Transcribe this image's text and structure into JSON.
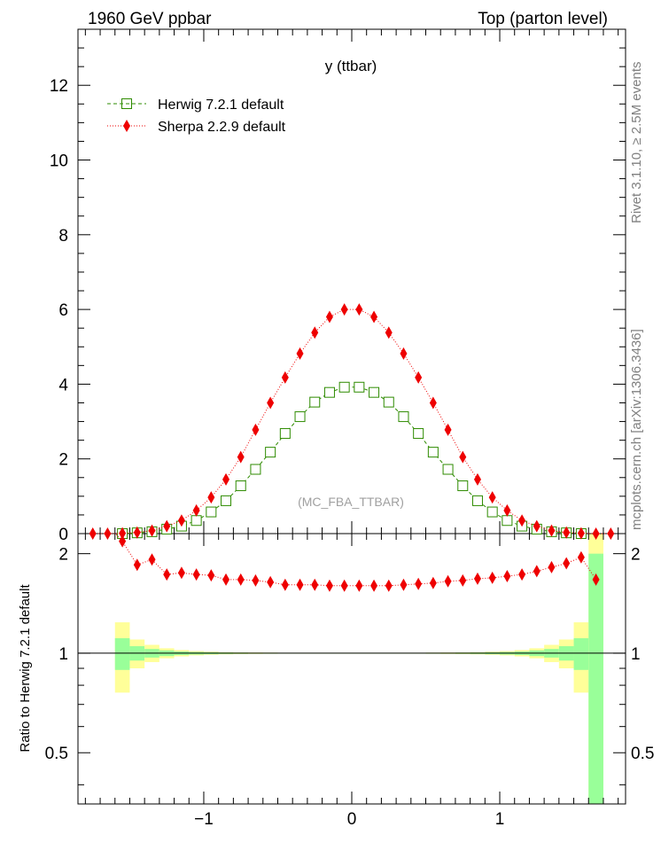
{
  "header": {
    "left": "1960 GeV ppbar",
    "right": "Top (parton level)"
  },
  "side": {
    "rivet": "Rivet 3.1.10, ≥ 2.5M events",
    "mcplots": "mcplots.cern.ch [arXiv:1306.3436]"
  },
  "colors": {
    "herwig": "#2e8b00",
    "sherpa": "#ee0000",
    "band_inner": "#99ff99",
    "band_outer": "#ffff99"
  },
  "chart_data": [
    {
      "type": "line",
      "title": "y (ttbar)",
      "watermark": "(MC_FBA_TTBAR)",
      "xlim": [
        -1.85,
        1.85
      ],
      "ylim": [
        0,
        13.5
      ],
      "yticks": [
        0,
        2,
        4,
        6,
        8,
        10,
        12
      ],
      "legend": "top-left",
      "x": [
        -1.7,
        -1.6,
        -1.5,
        -1.4,
        -1.3,
        -1.2,
        -1.1,
        -1.0,
        -0.9,
        -0.8,
        -0.7,
        -0.6,
        -0.5,
        -0.4,
        -0.3,
        -0.2,
        -0.1,
        0.0,
        0.1,
        0.2,
        0.3,
        0.4,
        0.5,
        0.6,
        0.7,
        0.8,
        0.9,
        1.0,
        1.1,
        1.2,
        1.3,
        1.4,
        1.5,
        1.6,
        1.7
      ],
      "series": [
        {
          "name": "Herwig 7.2.1 default",
          "marker": "open-square",
          "x": [
            -1.55,
            -1.45,
            -1.35,
            -1.25,
            -1.15,
            -1.05,
            -0.95,
            -0.85,
            -0.75,
            -0.65,
            -0.55,
            -0.45,
            -0.35,
            -0.25,
            -0.15,
            -0.05,
            0.05,
            0.15,
            0.25,
            0.35,
            0.45,
            0.55,
            0.65,
            0.75,
            0.85,
            0.95,
            1.05,
            1.15,
            1.25,
            1.35,
            1.45,
            1.55
          ],
          "values": [
            0.0,
            0.02,
            0.05,
            0.12,
            0.2,
            0.35,
            0.58,
            0.88,
            1.28,
            1.72,
            2.18,
            2.68,
            3.13,
            3.52,
            3.78,
            3.92,
            3.92,
            3.78,
            3.52,
            3.13,
            2.68,
            2.18,
            1.72,
            1.28,
            0.88,
            0.58,
            0.35,
            0.2,
            0.12,
            0.05,
            0.02,
            0.0
          ]
        },
        {
          "name": "Sherpa 2.2.9 default",
          "marker": "filled-diamond",
          "x": [
            -1.75,
            -1.65,
            -1.55,
            -1.45,
            -1.35,
            -1.25,
            -1.15,
            -1.05,
            -0.95,
            -0.85,
            -0.75,
            -0.65,
            -0.55,
            -0.45,
            -0.35,
            -0.25,
            -0.15,
            -0.05,
            0.05,
            0.15,
            0.25,
            0.35,
            0.45,
            0.55,
            0.65,
            0.75,
            0.85,
            0.95,
            1.05,
            1.15,
            1.25,
            1.35,
            1.45,
            1.55,
            1.65,
            1.75
          ],
          "values": [
            0.0,
            0.0,
            0.01,
            0.03,
            0.08,
            0.2,
            0.35,
            0.62,
            0.97,
            1.45,
            2.05,
            2.78,
            3.5,
            4.18,
            4.82,
            5.38,
            5.8,
            6.0,
            6.0,
            5.8,
            5.38,
            4.82,
            4.18,
            3.5,
            2.78,
            2.05,
            1.45,
            0.97,
            0.62,
            0.35,
            0.2,
            0.08,
            0.03,
            0.01,
            0.0,
            0.0
          ]
        }
      ]
    },
    {
      "type": "line",
      "ylabel": "Ratio to Herwig 7.2.1 default",
      "xlim": [
        -1.85,
        1.85
      ],
      "ylim": [
        0.35,
        2.3
      ],
      "yticks": [
        0.5,
        1,
        2
      ],
      "xticks": [
        -1,
        0,
        1
      ],
      "reference": 1,
      "band_x": [
        -1.55,
        -1.45,
        -1.35,
        -1.25,
        -1.15,
        -1.05,
        -0.95,
        -0.85,
        -0.75,
        -0.65,
        -0.55,
        -0.45,
        -0.35,
        -0.25,
        -0.15,
        -0.05,
        0.05,
        0.15,
        0.25,
        0.35,
        0.45,
        0.55,
        0.65,
        0.75,
        0.85,
        0.95,
        1.05,
        1.15,
        1.25,
        1.35,
        1.45,
        1.55,
        1.65
      ],
      "band_inner_half": [
        0.11,
        0.05,
        0.03,
        0.02,
        0.012,
        0.009,
        0.007,
        0.005,
        0.004,
        0.003,
        0.003,
        0.002,
        0.002,
        0.002,
        0.002,
        0.002,
        0.002,
        0.002,
        0.002,
        0.002,
        0.002,
        0.003,
        0.003,
        0.004,
        0.005,
        0.007,
        0.009,
        0.012,
        0.02,
        0.03,
        0.05,
        0.11,
        1.0
      ],
      "band_outer_half": [
        0.24,
        0.1,
        0.06,
        0.035,
        0.022,
        0.015,
        0.011,
        0.008,
        0.006,
        0.005,
        0.004,
        0.003,
        0.003,
        0.003,
        0.003,
        0.003,
        0.003,
        0.003,
        0.003,
        0.003,
        0.003,
        0.004,
        0.005,
        0.006,
        0.008,
        0.011,
        0.015,
        0.022,
        0.035,
        0.06,
        0.1,
        0.24,
        1.3
      ],
      "series": [
        {
          "name": "Sherpa 2.2.9 default",
          "x": [
            -1.65,
            -1.55,
            -1.45,
            -1.35,
            -1.25,
            -1.15,
            -1.05,
            -0.95,
            -0.85,
            -0.75,
            -0.65,
            -0.55,
            -0.45,
            -0.35,
            -0.25,
            -0.15,
            -0.05,
            0.05,
            0.15,
            0.25,
            0.35,
            0.45,
            0.55,
            0.65,
            0.75,
            0.85,
            0.95,
            1.05,
            1.15,
            1.25,
            1.35,
            1.45,
            1.55,
            1.65
          ],
          "values": [
            2.45,
            2.18,
            1.85,
            1.92,
            1.73,
            1.75,
            1.73,
            1.72,
            1.67,
            1.67,
            1.66,
            1.64,
            1.61,
            1.61,
            1.61,
            1.6,
            1.6,
            1.6,
            1.6,
            1.6,
            1.61,
            1.62,
            1.63,
            1.65,
            1.66,
            1.68,
            1.69,
            1.71,
            1.73,
            1.77,
            1.82,
            1.87,
            1.95,
            1.67
          ]
        }
      ]
    }
  ]
}
